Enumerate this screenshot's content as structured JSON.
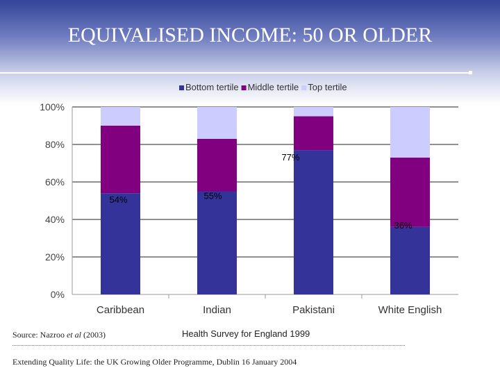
{
  "slide": {
    "title": "EQUIVALISED INCOME: 50 OR OLDER",
    "source_prefix": "Source: Nazroo ",
    "source_italic": "et al",
    "source_suffix": " (2003)",
    "survey": "Health Survey for England 1999",
    "footer": "Extending Quality Life: the UK Growing Older Programme, Dublin 16 January 2004"
  },
  "colors": {
    "header_dark": "#33449a",
    "bottom_tertile": "#33339a",
    "middle_tertile": "#800080",
    "top_tertile": "#ccccff"
  },
  "chart_data": {
    "type": "bar",
    "stacked": true,
    "categories": [
      "Caribbean",
      "Indian",
      "Pakistani",
      "White English"
    ],
    "series": [
      {
        "name": "Bottom tertile",
        "values": [
          54,
          55,
          77,
          36
        ],
        "color": "#33339a"
      },
      {
        "name": "Middle tertile",
        "values": [
          36,
          28,
          18,
          37
        ],
        "color": "#800080"
      },
      {
        "name": "Top tertile",
        "values": [
          10,
          17,
          5,
          27
        ],
        "color": "#ccccff"
      }
    ],
    "data_labels": [
      "54%",
      "55%",
      "77%",
      "36%"
    ],
    "y_ticks": [
      "0%",
      "20%",
      "40%",
      "60%",
      "80%",
      "100%"
    ],
    "ylim": [
      0,
      100
    ],
    "grid": true,
    "legend": "top"
  }
}
